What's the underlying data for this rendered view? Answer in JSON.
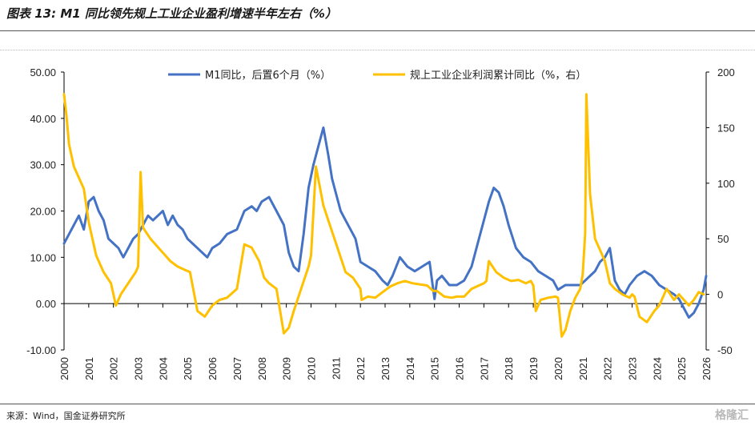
{
  "title": "图表 13: M1 同比领先规上工业企业盈利增速半年左右（%）",
  "source": "来源：Wind，国金证券研究所",
  "watermark": "格隆汇",
  "chart_data": {
    "type": "line",
    "title": "图表 13: M1 同比领先规上工业企业盈利增速半年左右（%）",
    "legend_position": "top",
    "grid": false,
    "x_ticks": [
      "2000",
      "2001",
      "2002",
      "2003",
      "2004",
      "2005",
      "2006",
      "2007",
      "2008",
      "2009",
      "2010",
      "2011",
      "2012",
      "2013",
      "2014",
      "2015",
      "2016",
      "2017",
      "2018",
      "2019",
      "2020",
      "2021",
      "2022",
      "2023",
      "2024",
      "2025",
      "2026"
    ],
    "xlim": [
      2000,
      2026
    ],
    "y_left": {
      "ylim": [
        -10,
        50
      ],
      "ticks": [
        "-10.00",
        "0.00",
        "10.00",
        "20.00",
        "30.00",
        "40.00",
        "50.00"
      ]
    },
    "y_right": {
      "ylim": [
        -50,
        200
      ],
      "ticks": [
        "-50",
        "0",
        "50",
        "100",
        "150",
        "200"
      ]
    },
    "series": [
      {
        "name": "M1同比，后置6个月（%）",
        "axis": "left",
        "color": "#4472C4",
        "x": [
          2000.0,
          2000.2,
          2000.4,
          2000.6,
          2000.8,
          2001.0,
          2001.2,
          2001.4,
          2001.6,
          2001.8,
          2002.0,
          2002.2,
          2002.4,
          2002.6,
          2002.8,
          2003.0,
          2003.2,
          2003.4,
          2003.6,
          2003.8,
          2004.0,
          2004.2,
          2004.4,
          2004.6,
          2004.8,
          2005.0,
          2005.2,
          2005.4,
          2005.6,
          2005.8,
          2006.0,
          2006.3,
          2006.6,
          2007.0,
          2007.3,
          2007.6,
          2007.8,
          2008.0,
          2008.3,
          2008.6,
          2008.9,
          2009.1,
          2009.3,
          2009.5,
          2009.7,
          2009.9,
          2010.1,
          2010.3,
          2010.5,
          2010.7,
          2010.85,
          2011.0,
          2011.2,
          2011.4,
          2011.6,
          2011.8,
          2012.0,
          2012.3,
          2012.6,
          2012.9,
          2013.1,
          2013.3,
          2013.6,
          2013.9,
          2014.2,
          2014.5,
          2014.8,
          2015.0,
          2015.1,
          2015.3,
          2015.6,
          2015.9,
          2016.2,
          2016.5,
          2016.8,
          2017.0,
          2017.2,
          2017.4,
          2017.6,
          2017.8,
          2018.0,
          2018.3,
          2018.6,
          2018.9,
          2019.2,
          2019.5,
          2019.8,
          2020.0,
          2020.3,
          2020.6,
          2020.9,
          2021.1,
          2021.3,
          2021.5,
          2021.7,
          2021.9,
          2022.1,
          2022.3,
          2022.5,
          2022.7,
          2022.9,
          2023.2,
          2023.5,
          2023.8,
          2024.1,
          2024.4,
          2024.7,
          2024.9,
          2025.1,
          2025.3,
          2025.5,
          2025.7,
          2025.9,
          2026.0
        ],
        "values": [
          13,
          15,
          17,
          19,
          16,
          22,
          23,
          20,
          18,
          14,
          13,
          12,
          10,
          12,
          14,
          15,
          17,
          19,
          18,
          19,
          20,
          17,
          19,
          17,
          16,
          14,
          13,
          12,
          11,
          10,
          12,
          13,
          15,
          16,
          20,
          21,
          20,
          22,
          23,
          20,
          17,
          11,
          8,
          7,
          15,
          25,
          30,
          34,
          38,
          32,
          27,
          24,
          20,
          18,
          16,
          14,
          9,
          8,
          7,
          5,
          4,
          6,
          10,
          8,
          7,
          8,
          9,
          1,
          5,
          6,
          4,
          4,
          5,
          8,
          14,
          18,
          22,
          25,
          24,
          21,
          17,
          12,
          10,
          9,
          7,
          6,
          5,
          3,
          4,
          4,
          4,
          5,
          6,
          7,
          9,
          10,
          12,
          5,
          3,
          2,
          4,
          6,
          7,
          6,
          4,
          3,
          2,
          1,
          -1,
          -3,
          -2,
          0,
          3,
          6
        ]
      },
      {
        "name": "规上工业企业利润累计同比（%，右）",
        "axis": "right",
        "color": "#FFC000",
        "x": [
          2000.0,
          2000.1,
          2000.2,
          2000.4,
          2000.6,
          2000.8,
          2001.0,
          2001.3,
          2001.6,
          2001.9,
          2002.1,
          2002.3,
          2002.6,
          2002.9,
          2003.0,
          2003.1,
          2003.2,
          2003.35,
          2003.5,
          2003.7,
          2003.9,
          2004.1,
          2004.3,
          2004.6,
          2004.9,
          2005.1,
          2005.4,
          2005.7,
          2006.0,
          2006.3,
          2006.6,
          2007.0,
          2007.3,
          2007.6,
          2007.9,
          2008.1,
          2008.3,
          2008.6,
          2008.9,
          2009.1,
          2009.3,
          2009.6,
          2009.9,
          2010.0,
          2010.2,
          2010.5,
          2010.8,
          2011.1,
          2011.4,
          2011.7,
          2012.0,
          2012.05,
          2012.3,
          2012.6,
          2012.9,
          2013.2,
          2013.5,
          2013.8,
          2014.1,
          2014.4,
          2014.7,
          2014.95,
          2015.1,
          2015.4,
          2015.7,
          2015.9,
          2016.2,
          2016.5,
          2016.8,
          2017.0,
          2017.1,
          2017.2,
          2017.5,
          2017.8,
          2018.1,
          2018.4,
          2018.7,
          2018.9,
          2019.0,
          2019.1,
          2019.3,
          2019.6,
          2019.9,
          2020.0,
          2020.15,
          2020.3,
          2020.5,
          2020.7,
          2020.9,
          2021.0,
          2021.1,
          2021.15,
          2021.3,
          2021.5,
          2021.7,
          2021.9,
          2022.1,
          2022.3,
          2022.6,
          2022.9,
          2023.0,
          2023.1,
          2023.3,
          2023.6,
          2023.9,
          2024.1,
          2024.4,
          2024.7,
          2024.9,
          2025.1,
          2025.3,
          2025.5,
          2025.7,
          2025.9
        ],
        "values": [
          180,
          160,
          135,
          115,
          105,
          95,
          65,
          35,
          20,
          10,
          -10,
          0,
          10,
          20,
          25,
          110,
          60,
          55,
          50,
          45,
          40,
          35,
          30,
          25,
          22,
          20,
          -15,
          -20,
          -10,
          -5,
          -3,
          5,
          45,
          42,
          30,
          15,
          10,
          5,
          -35,
          -30,
          -15,
          5,
          25,
          35,
          115,
          80,
          60,
          40,
          20,
          15,
          5,
          -5,
          -2,
          -3,
          2,
          7,
          10,
          12,
          10,
          9,
          8,
          3,
          3,
          -2,
          -3,
          -2,
          -2,
          5,
          8,
          10,
          12,
          30,
          20,
          15,
          12,
          13,
          10,
          12,
          8,
          -15,
          -5,
          -3,
          -2,
          -3,
          -38,
          -32,
          -15,
          -3,
          5,
          18,
          55,
          180,
          90,
          50,
          40,
          30,
          10,
          5,
          0,
          -3,
          0,
          -2,
          -20,
          -25,
          -15,
          -10,
          5,
          -5,
          0,
          -5,
          -10,
          -5,
          2,
          0
        ]
      }
    ]
  }
}
